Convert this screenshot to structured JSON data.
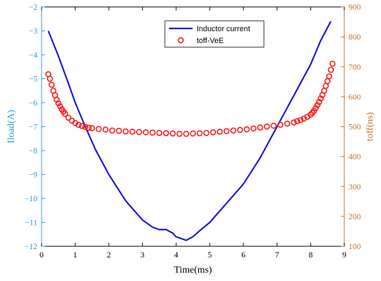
{
  "chart_data": {
    "type": "line",
    "xlabel": "Time(ms)",
    "ylabel_left": "Iload(A)",
    "ylabel_right": "toff(ns)",
    "xlim": [
      0,
      9
    ],
    "ylim_left": [
      -12,
      -2
    ],
    "ylim_right": [
      100,
      900
    ],
    "x_ticks": [
      0,
      1,
      2,
      3,
      4,
      5,
      6,
      7,
      8,
      9
    ],
    "y_left_ticks": [
      -12,
      -11,
      -10,
      -9,
      -8,
      -7,
      -6,
      -5,
      -4,
      -3,
      -2
    ],
    "y_right_ticks": [
      100,
      200,
      300,
      400,
      500,
      600,
      700,
      800,
      900
    ],
    "grid": false,
    "legend_position": "top-center",
    "colors": {
      "inductor": "#1a1adb",
      "toff": "#ff1a1a",
      "left_axis": "#2e9bd6",
      "right_axis": "#c4722d"
    },
    "series": [
      {
        "name": "Inductor current",
        "axis": "left",
        "style": "line",
        "x": [
          0.2,
          0.5,
          0.8,
          1.0,
          1.3,
          1.6,
          2.0,
          2.5,
          3.0,
          3.3,
          3.5,
          3.7,
          3.9,
          4.0,
          4.1,
          4.3,
          4.5,
          4.7,
          5.0,
          5.5,
          6.0,
          6.5,
          7.0,
          7.5,
          8.0,
          8.3,
          8.6
        ],
        "y": [
          -3.0,
          -4.05,
          -5.2,
          -6.0,
          -7.0,
          -7.95,
          -9.0,
          -10.1,
          -10.9,
          -11.2,
          -11.3,
          -11.3,
          -11.45,
          -11.6,
          -11.65,
          -11.75,
          -11.6,
          -11.35,
          -11.0,
          -10.2,
          -9.4,
          -8.3,
          -7.0,
          -5.7,
          -4.4,
          -3.4,
          -2.6
        ]
      },
      {
        "name": "toff-VeE",
        "axis": "right",
        "style": "markers",
        "x": [
          0.2,
          0.25,
          0.3,
          0.35,
          0.4,
          0.45,
          0.5,
          0.55,
          0.6,
          0.65,
          0.7,
          0.8,
          0.9,
          1.0,
          1.1,
          1.2,
          1.3,
          1.4,
          1.5,
          1.7,
          1.9,
          2.1,
          2.3,
          2.5,
          2.7,
          2.9,
          3.1,
          3.3,
          3.5,
          3.7,
          3.9,
          4.1,
          4.3,
          4.5,
          4.7,
          4.9,
          5.1,
          5.3,
          5.5,
          5.7,
          5.9,
          6.1,
          6.3,
          6.5,
          6.7,
          6.9,
          7.1,
          7.3,
          7.5,
          7.6,
          7.7,
          7.8,
          7.9,
          8.0,
          8.05,
          8.1,
          8.15,
          8.2,
          8.25,
          8.3,
          8.35,
          8.4,
          8.45,
          8.5,
          8.55,
          8.6,
          8.65
        ],
        "y": [
          675,
          660,
          640,
          620,
          605,
          590,
          578,
          568,
          558,
          550,
          543,
          530,
          520,
          512,
          506,
          502,
          499,
          496,
          495,
          492,
          490,
          487,
          486,
          484,
          483,
          482,
          481,
          480,
          479,
          478,
          477,
          476,
          476,
          477,
          478,
          479,
          481,
          483,
          485,
          487,
          489,
          491,
          494,
          497,
          500,
          503,
          506,
          510,
          514,
          518,
          522,
          527,
          533,
          540,
          546,
          553,
          562,
          572,
          582,
          594,
          606,
          620,
          636,
          652,
          668,
          690,
          710
        ]
      }
    ]
  }
}
